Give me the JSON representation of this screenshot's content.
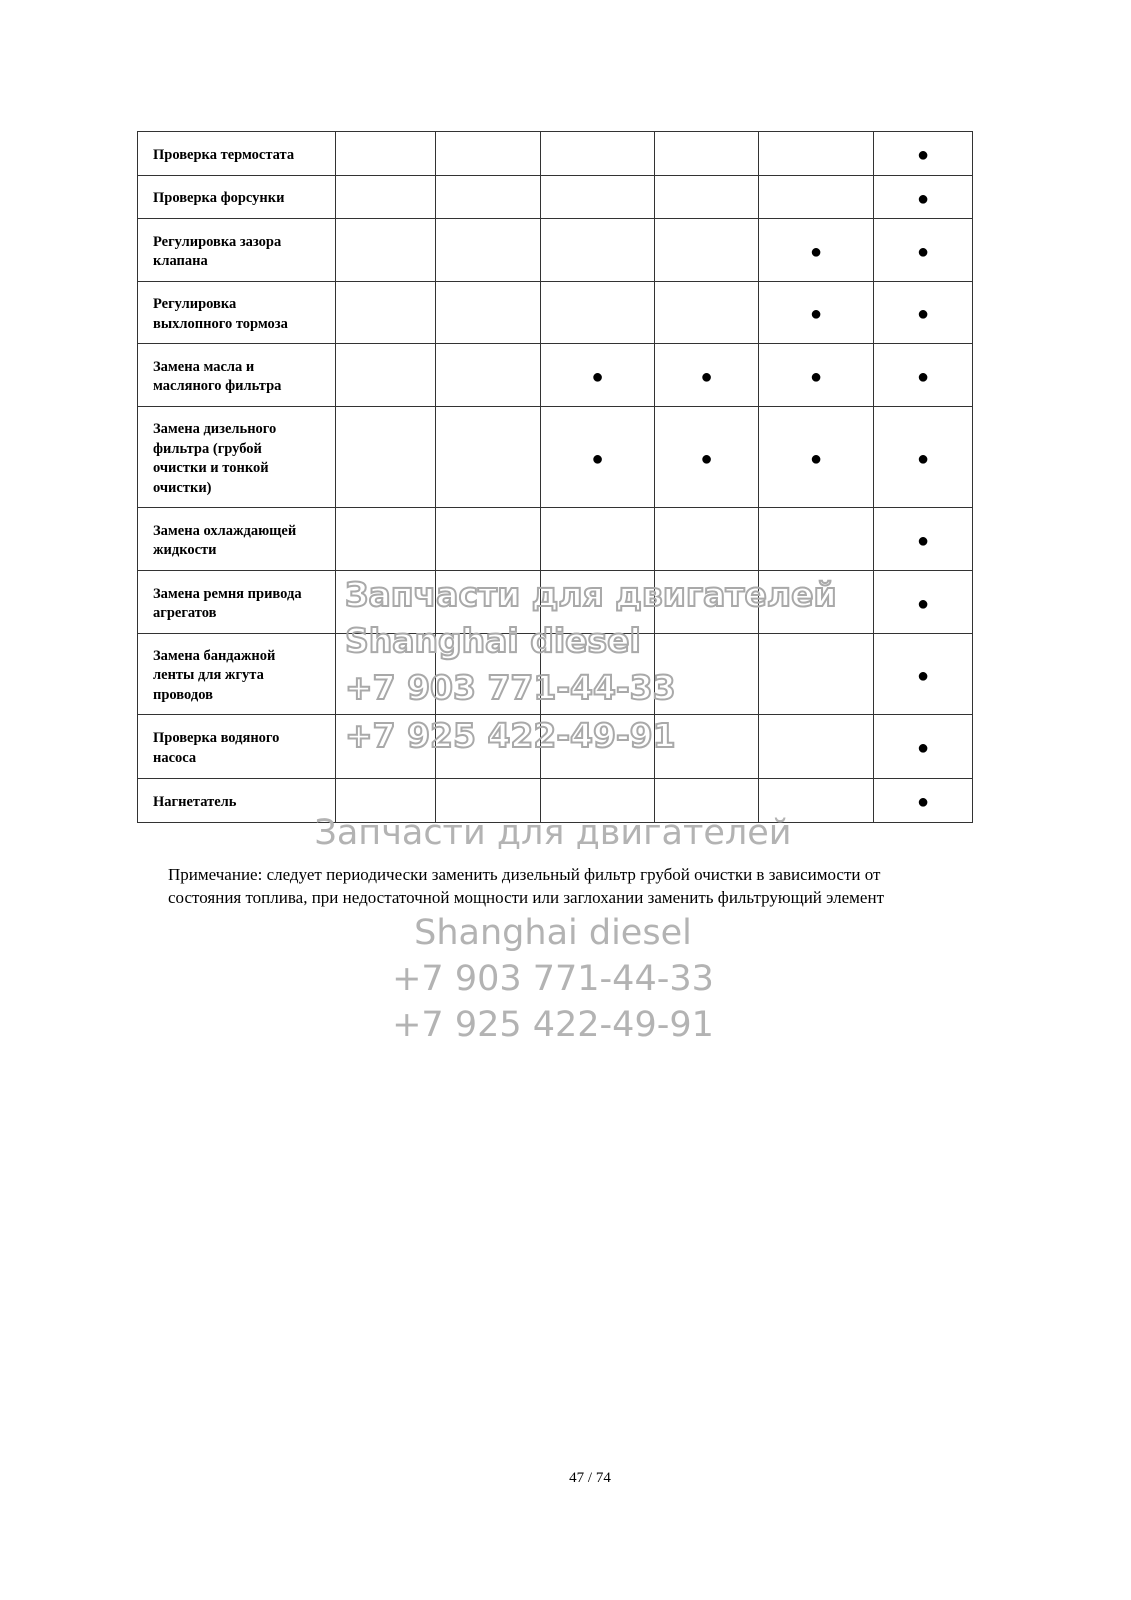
{
  "table": {
    "rows": [
      {
        "label": "Проверка термостата",
        "marks": [
          false,
          false,
          false,
          false,
          false,
          true
        ]
      },
      {
        "label": "Проверка форсунки",
        "marks": [
          false,
          false,
          false,
          false,
          false,
          true
        ]
      },
      {
        "label": "Регулировка зазора\nклапана",
        "marks": [
          false,
          false,
          false,
          false,
          true,
          true
        ]
      },
      {
        "label": "Регулировка\nвыхлопного тормоза",
        "marks": [
          false,
          false,
          false,
          false,
          true,
          true
        ]
      },
      {
        "label": "Замена масла и\nмасляного фильтра",
        "marks": [
          false,
          false,
          true,
          true,
          true,
          true
        ]
      },
      {
        "label": "Замена дизельного\nфильтра (грубой\nочистки и тонкой\nочистки)",
        "marks": [
          false,
          false,
          true,
          true,
          true,
          true
        ]
      },
      {
        "label": "Замена охлаждающей\nжидкости",
        "marks": [
          false,
          false,
          false,
          false,
          false,
          true
        ]
      },
      {
        "label": "Замена ремня привода\nагрегатов",
        "marks": [
          false,
          false,
          false,
          false,
          false,
          true
        ]
      },
      {
        "label": "Замена бандажной\nленты для жгута\nпроводов",
        "marks": [
          false,
          false,
          false,
          false,
          false,
          true
        ]
      },
      {
        "label": "Проверка водяного\nнасоса",
        "marks": [
          false,
          false,
          false,
          false,
          false,
          true
        ]
      },
      {
        "label": "Нагнетатель",
        "marks": [
          false,
          false,
          false,
          false,
          false,
          true
        ]
      }
    ],
    "mark_symbol": "●"
  },
  "note": {
    "line1": "Примечание: следует периодически заменить дизельный фильтр грубой очистки в зависимости от",
    "line2": "состояния топлива, при недостаточной мощности или заглохании заменить фильтрующий элемент"
  },
  "watermark": {
    "line1": "Запчасти для двигателей",
    "line2": "Shanghai diesel",
    "line3": "+7 903 771-44-33",
    "line4": "+7 925 422-49-91"
  },
  "page_number": "47 / 74"
}
